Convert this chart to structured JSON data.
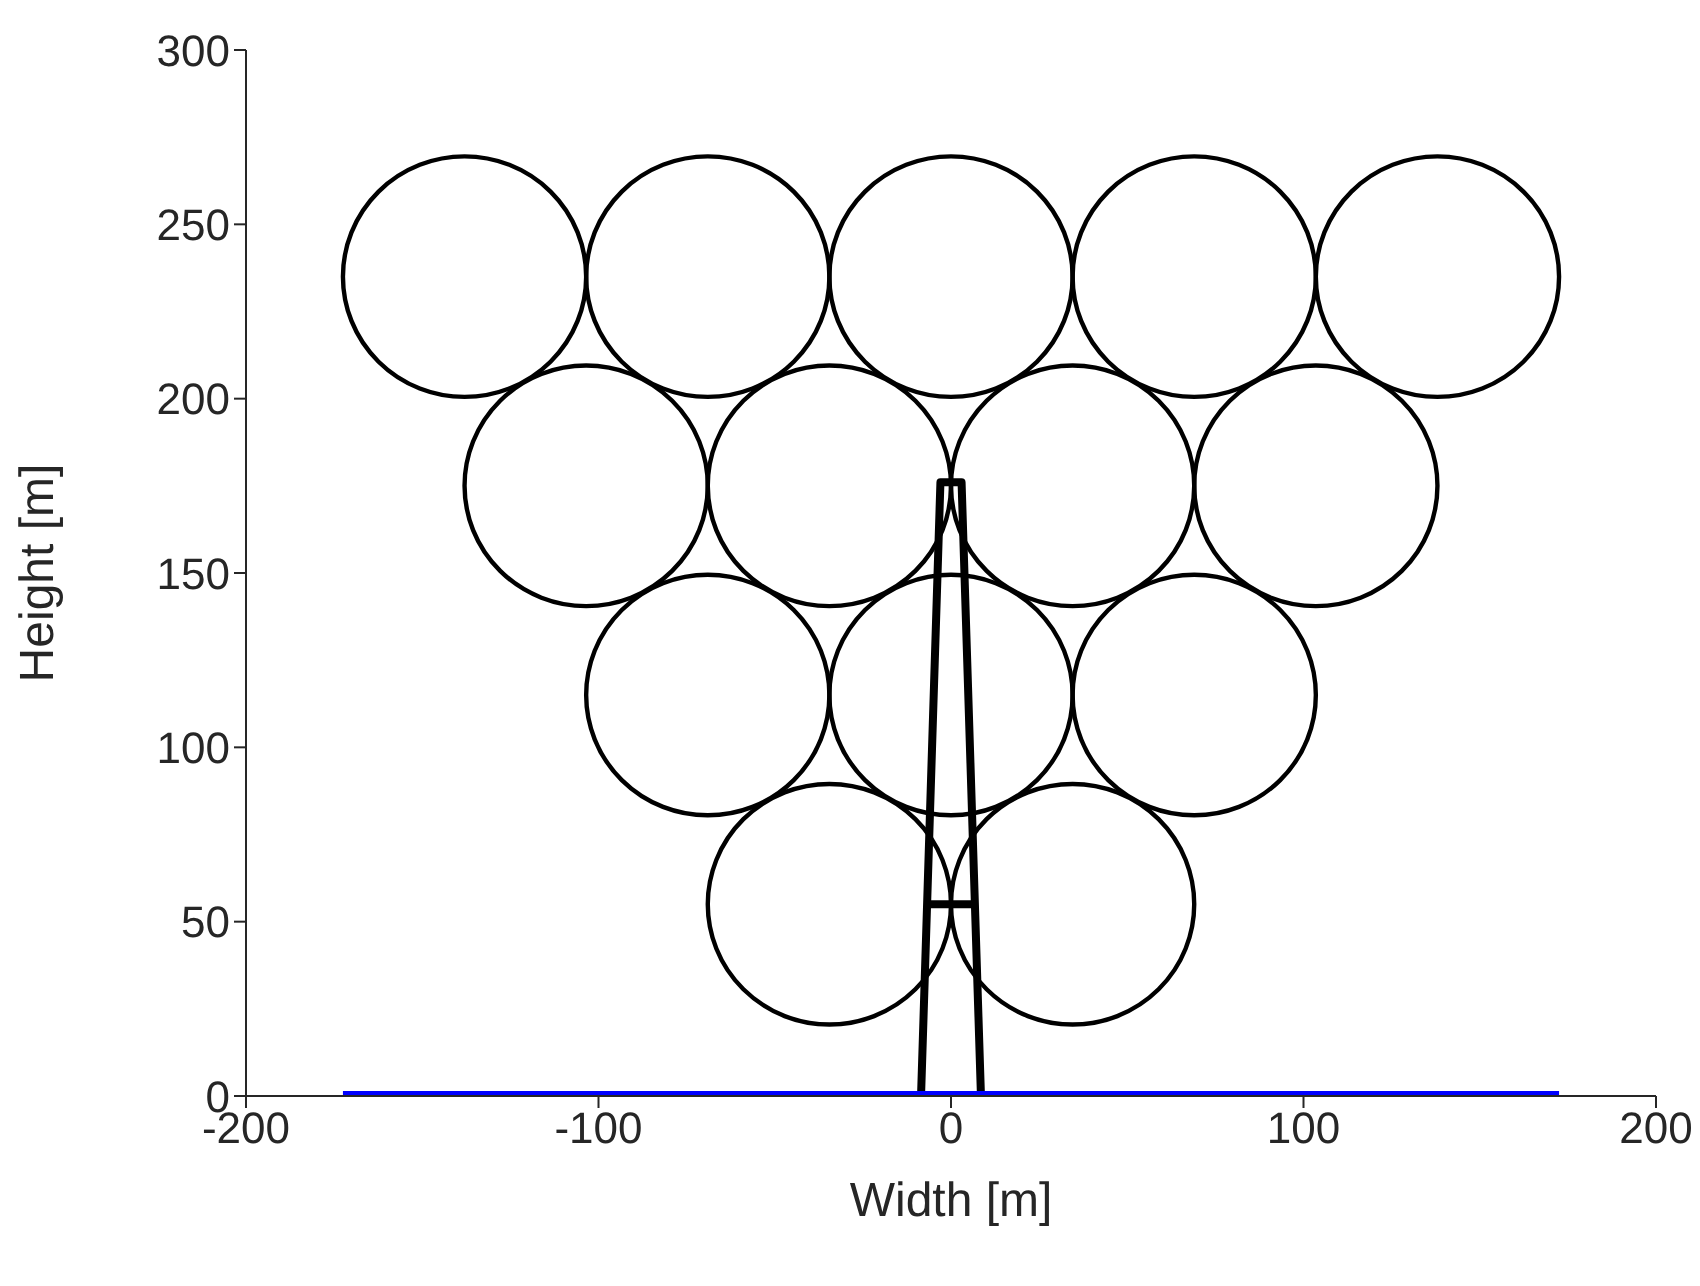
{
  "chart_data": {
    "type": "line",
    "xlabel": "Width [m]",
    "ylabel": "Height [m]",
    "xlim": [
      -200,
      200
    ],
    "xticks": [
      -200,
      -100,
      0,
      100,
      200
    ],
    "ylim": [
      0,
      300
    ],
    "yticks": [
      0,
      50,
      100,
      150,
      200,
      250,
      300
    ],
    "series": [
      {
        "color": "#000000",
        "x": [
          -8.5,
          -3,
          3,
          8.5
        ],
        "values": [
          0,
          176,
          176,
          0
        ]
      },
      {
        "color": "#000000",
        "x": [
          -6.3,
          6.3
        ],
        "values": [
          55,
          55
        ]
      },
      {
        "color": "#0000ff",
        "x": [
          -172.5,
          172.5
        ],
        "values": [
          0,
          0
        ]
      }
    ]
  }
}
